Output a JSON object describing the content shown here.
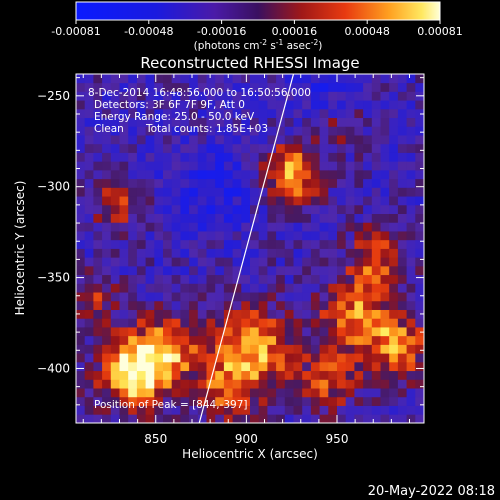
{
  "colorbar": {
    "ticks": [
      "-0.00081",
      "-0.00048",
      "-0.00016",
      "0.00016",
      "0.00048",
      "0.00081"
    ],
    "label_parts": {
      "p1": "(photons cm",
      "s1": "-2",
      "p2": " s",
      "s2": "-1",
      "p3": " asec",
      "s3": "-2",
      "p4": ")"
    }
  },
  "chart_data": {
    "type": "heatmap",
    "title": "Reconstructed RHESSI Image",
    "xlabel": "Heliocentric X (arcsec)",
    "ylabel": "Heliocentric Y (arcsec)",
    "xlim": [
      806,
      998
    ],
    "ylim": [
      -430,
      -238
    ],
    "x_ticks": [
      850,
      900,
      950
    ],
    "x_tick_labels": [
      "850",
      "900",
      "950"
    ],
    "y_ticks": [
      -250,
      -300,
      -350,
      -400
    ],
    "y_tick_labels": [
      "−250",
      "−300",
      "−350",
      "−400"
    ],
    "color_range": [
      -0.00081,
      0.00081
    ],
    "limb_line": {
      "x": [
        874,
        926
      ],
      "y": [
        -430,
        -238
      ]
    },
    "annotations": [
      "8-Dec-2014 16:48:56.000 to 16:50:56.000",
      "Detectors: 3F 6F 7F 9F, Att 0",
      "Energy Range: 25.0 - 50.0 keV",
      "Clean",
      "Total counts: 1.85E+03"
    ],
    "peak_label": "Position of Peak = [844,-397]",
    "peak": [
      844,
      -397
    ],
    "blobs": [
      {
        "x": 838,
        "y": -402,
        "amp": 1.0,
        "sigma": 14
      },
      {
        "x": 858,
        "y": -388,
        "amp": 0.65,
        "sigma": 13
      },
      {
        "x": 905,
        "y": -388,
        "amp": 0.75,
        "sigma": 16
      },
      {
        "x": 960,
        "y": -372,
        "amp": 0.7,
        "sigma": 14
      },
      {
        "x": 985,
        "y": -388,
        "amp": 0.6,
        "sigma": 13
      },
      {
        "x": 972,
        "y": -340,
        "amp": 0.55,
        "sigma": 12
      },
      {
        "x": 925,
        "y": -293,
        "amp": 0.85,
        "sigma": 11
      },
      {
        "x": 828,
        "y": -310,
        "amp": 0.45,
        "sigma": 10
      },
      {
        "x": 815,
        "y": -362,
        "amp": 0.4,
        "sigma": 10
      },
      {
        "x": 952,
        "y": -268,
        "amp": 0.35,
        "sigma": 9
      },
      {
        "x": 890,
        "y": -412,
        "amp": 0.55,
        "sigma": 12
      },
      {
        "x": 945,
        "y": -408,
        "amp": 0.5,
        "sigma": 12
      },
      {
        "x": 880,
        "y": -300,
        "amp": -0.35,
        "sigma": 16
      },
      {
        "x": 940,
        "y": -245,
        "amp": -0.25,
        "sigma": 14
      }
    ]
  },
  "footer": {
    "date": "20-May-2022 08:18"
  }
}
